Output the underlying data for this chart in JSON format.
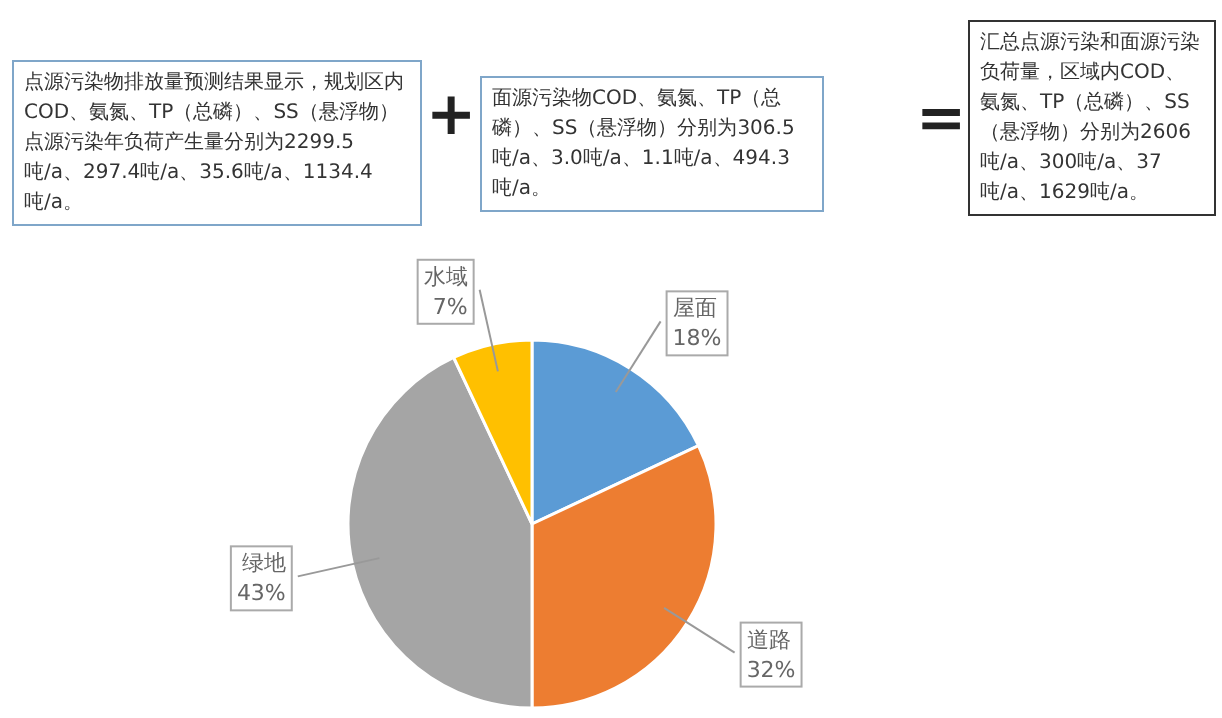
{
  "chart_data": {
    "type": "pie",
    "categories": [
      "屋面",
      "道路",
      "绿地",
      "水域"
    ],
    "values": [
      18,
      32,
      43,
      7
    ],
    "colors": [
      "#5b9bd5",
      "#ed7d31",
      "#a5a5a5",
      "#ffc000"
    ],
    "value_labels": [
      "18%",
      "32%",
      "43%",
      "7%"
    ],
    "annotations": [
      "点源污染物排放量预测结果显示，规划区内COD、氨氮、TP（总磷）、SS（悬浮物）点源污染年负荷产生量分别为2299.5吨/a、297.4吨/a、35.6吨/a、1134.4吨/a。",
      "+",
      "面源污染物COD、氨氮、TP（总磷）、SS（悬浮物）分别为306.5吨/a、3.0吨/a、1.1吨/a、494.3吨/a。",
      "=",
      "汇总点源污染和面源污染负荷量，区域内COD、氨氮、TP（总磷）、SS（悬浮物）分别为2606吨/a、300吨/a、37吨/a、1629吨/a。"
    ]
  }
}
